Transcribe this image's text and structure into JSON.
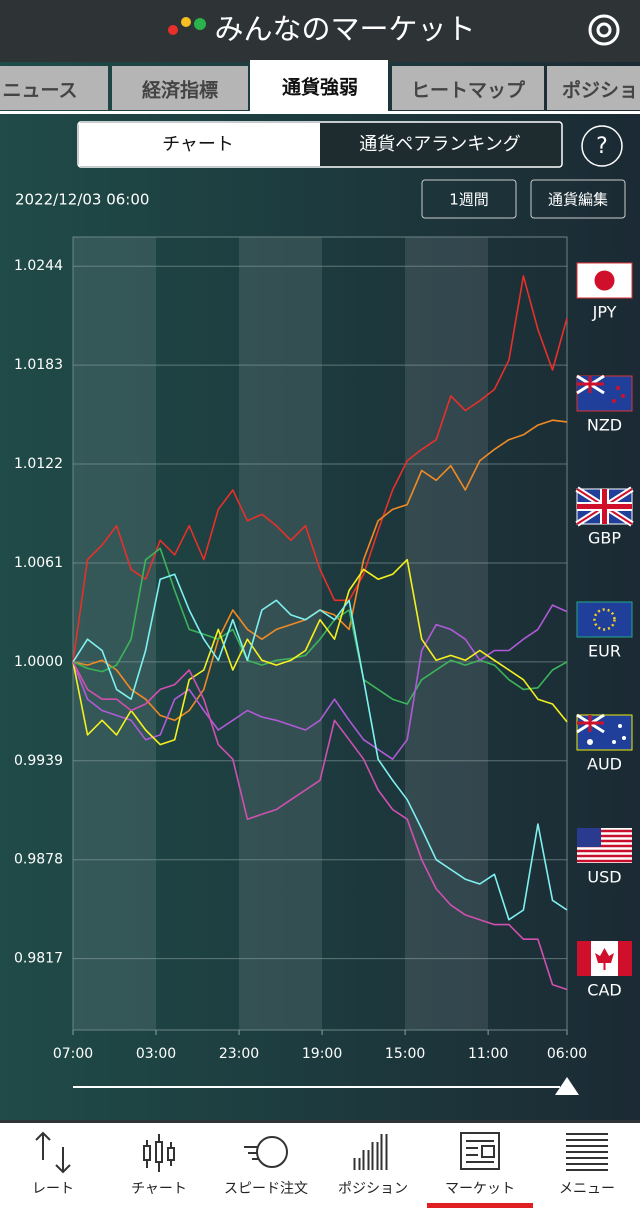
{
  "header": {
    "title": "みんなのマーケット"
  },
  "tabs": [
    "ニュース",
    "経済指標",
    "通貨強弱",
    "ヒートマップ",
    "ポジショ"
  ],
  "sub_tabs": [
    "チャート",
    "通貨ペアランキング"
  ],
  "help": "?",
  "date": "2022/12/03 06:00",
  "buttons": [
    "1週間",
    "通貨編集"
  ],
  "chart_data": {
    "type": "line",
    "x": [
      0,
      3.5,
      7,
      10.5,
      14,
      17.5,
      21,
      24.5,
      28,
      31.5,
      35,
      38.5,
      42,
      45.5,
      49,
      52.5,
      56,
      59.5,
      63,
      66.5,
      70,
      73.5,
      77,
      80.5,
      84,
      87.5,
      91,
      94.5,
      98,
      101.5,
      105,
      108.5,
      112,
      115.5,
      119
    ],
    "xlim": [
      0,
      119
    ],
    "xticks": [
      {
        "value": 0,
        "label": "07:00"
      },
      {
        "value": 20,
        "label": "03:00"
      },
      {
        "value": 40,
        "label": "23:00"
      },
      {
        "value": 60,
        "label": "19:00"
      },
      {
        "value": 80,
        "label": "15:00"
      },
      {
        "value": 100,
        "label": "11:00"
      },
      {
        "value": 119,
        "label": "06:00"
      }
    ],
    "ylim": [
      0.9773,
      1.0262
    ],
    "yticks": [
      1.0244,
      1.0183,
      1.0122,
      1.0061,
      {
        "value": 1,
        "label": "1.0000"
      },
      0.9939,
      0.9878,
      0.9817
    ],
    "grid": true,
    "series": [
      {
        "name": "JPY",
        "color": "#e8302a",
        "values": [
          1.0,
          1.0063,
          1.0072,
          1.0084,
          1.0057,
          1.0051,
          1.0075,
          1.0066,
          1.0084,
          1.0063,
          1.0094,
          1.0106,
          1.0087,
          1.0091,
          1.0084,
          1.0075,
          1.0084,
          1.0057,
          1.0038,
          1.0038,
          1.0054,
          1.0081,
          1.0106,
          1.0124,
          1.0131,
          1.0137,
          1.0164,
          1.0155,
          1.0161,
          1.0168,
          1.0186,
          1.0238,
          1.0205,
          1.018,
          1.0212
        ]
      },
      {
        "name": "NZD",
        "color": "#f08a24",
        "values": [
          1.0,
          0.9998,
          1.0001,
          0.9995,
          0.9983,
          0.9977,
          0.9967,
          0.9964,
          0.997,
          0.9983,
          1.0014,
          1.0032,
          1.002,
          1.0014,
          1.002,
          1.0023,
          1.0026,
          1.0032,
          1.0029,
          1.002,
          1.0063,
          1.0087,
          1.0094,
          1.0097,
          1.0118,
          1.0112,
          1.0121,
          1.0106,
          1.0124,
          1.0131,
          1.0137,
          1.014,
          1.0146,
          1.0149,
          1.0148
        ]
      },
      {
        "name": "GBP",
        "color": "#3cb45a",
        "values": [
          1.0,
          0.9996,
          0.9994,
          0.9998,
          1.0014,
          1.0063,
          1.007,
          1.0044,
          1.002,
          1.0017,
          1.0014,
          1.002,
          1.0001,
          0.9998,
          1.0001,
          1.0002,
          1.0004,
          1.0014,
          1.0026,
          1.0032,
          0.9989,
          0.9983,
          0.9977,
          0.9974,
          0.9989,
          0.9995,
          1.0001,
          0.9998,
          1.0001,
          0.9998,
          0.9989,
          0.9983,
          0.9984,
          0.9995,
          1.0
        ]
      },
      {
        "name": "EUR",
        "color": "#b05ad8",
        "values": [
          1.0,
          0.9977,
          0.997,
          0.9967,
          0.9964,
          0.9952,
          0.9955,
          0.9977,
          0.9983,
          0.997,
          0.9958,
          0.9964,
          0.997,
          0.9966,
          0.9964,
          0.9961,
          0.9958,
          0.9964,
          0.9977,
          0.9964,
          0.9952,
          0.9946,
          0.994,
          0.9952,
          1.0007,
          1.0023,
          1.002,
          1.0014,
          1.0001,
          1.0007,
          1.0007,
          1.0014,
          1.002,
          1.0035,
          1.0031
        ]
      },
      {
        "name": "AUD",
        "color": "#f5f020",
        "values": [
          1.0,
          0.9955,
          0.9964,
          0.9955,
          0.997,
          0.9958,
          0.9949,
          0.9952,
          0.9989,
          0.9995,
          1.002,
          0.9995,
          1.0014,
          1.0001,
          0.9998,
          1.0001,
          1.0007,
          1.0026,
          1.0014,
          1.0044,
          1.0057,
          1.0051,
          1.0054,
          1.0063,
          1.0014,
          1.0001,
          1.0004,
          1.0001,
          1.0007,
          1.0001,
          0.9995,
          0.9989,
          0.9977,
          0.9974,
          0.9963
        ]
      },
      {
        "name": "USD",
        "color": "#7ff0f0",
        "values": [
          1.0,
          1.0014,
          1.0007,
          0.9983,
          0.9977,
          1.0007,
          1.0051,
          1.0054,
          1.0032,
          1.0014,
          1.0001,
          1.0026,
          1.0001,
          1.0032,
          1.0038,
          1.0029,
          1.0026,
          1.0032,
          1.0026,
          1.0038,
          0.9989,
          0.994,
          0.9927,
          0.9915,
          0.9897,
          0.9878,
          0.9872,
          0.9866,
          0.9863,
          0.9869,
          0.9841,
          0.9847,
          0.99,
          0.9853,
          0.9847
        ]
      },
      {
        "name": "CAD",
        "color": "#d050b0",
        "values": [
          1.0,
          0.9983,
          0.9977,
          0.9977,
          0.997,
          0.9974,
          0.9983,
          0.9986,
          0.9995,
          0.9977,
          0.9949,
          0.994,
          0.9903,
          0.9906,
          0.9909,
          0.9915,
          0.9921,
          0.9927,
          0.9964,
          0.9952,
          0.994,
          0.9921,
          0.9909,
          0.9903,
          0.9878,
          0.986,
          0.985,
          0.9844,
          0.9841,
          0.9838,
          0.9838,
          0.9829,
          0.9829,
          0.9801,
          0.9798
        ]
      }
    ]
  },
  "bottom_nav": [
    "レート",
    "チャート",
    "スピード注文",
    "ポジション",
    "マーケット",
    "メニュー"
  ]
}
